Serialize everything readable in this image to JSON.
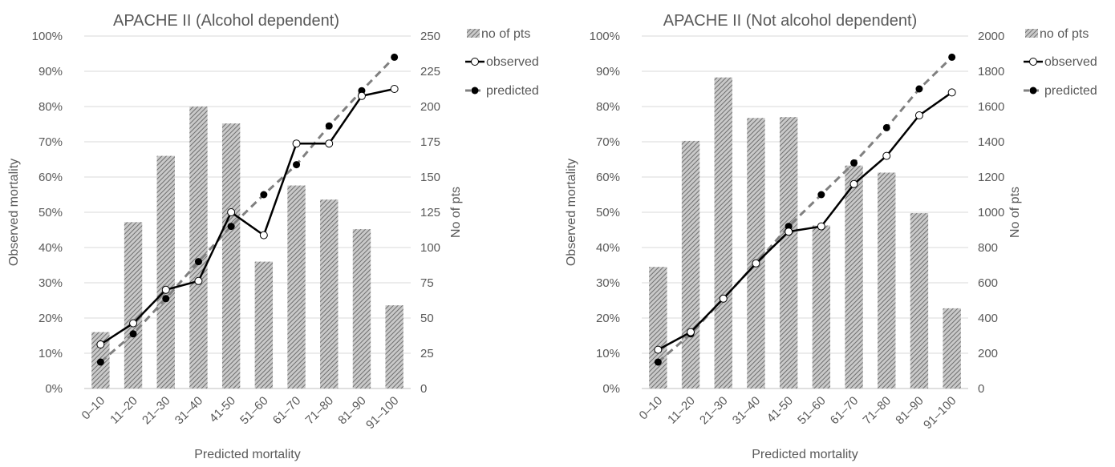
{
  "chart_data": [
    {
      "type": "bar",
      "title": "APACHE II (Alcohol dependent)",
      "xlabel": "Predicted mortality",
      "ylabel": "Observed mortality",
      "y2label": "No of pts",
      "categories": [
        "0–10",
        "11–20",
        "21–30",
        "31–40",
        "41-50",
        "51–60",
        "61–70",
        "71–80",
        "81–90",
        "91–100"
      ],
      "ylim": [
        0,
        100
      ],
      "y_ticks": [
        "0%",
        "10%",
        "20%",
        "30%",
        "40%",
        "50%",
        "60%",
        "70%",
        "80%",
        "90%",
        "100%"
      ],
      "y2lim": [
        0,
        250
      ],
      "y2_ticks": [
        "0",
        "25",
        "50",
        "75",
        "100",
        "125",
        "150",
        "175",
        "200",
        "225",
        "250"
      ],
      "legend_placement": "top-right",
      "series": [
        {
          "name": "no of pts",
          "kind": "bar",
          "axis": "right",
          "values": [
            40,
            118,
            165,
            200,
            188,
            90,
            144,
            134,
            113,
            59
          ]
        },
        {
          "name": "observed",
          "kind": "line-hollow-markers",
          "axis": "left",
          "values": [
            12.5,
            18.5,
            28,
            30.5,
            50,
            43.5,
            69.5,
            69.5,
            83,
            85
          ]
        },
        {
          "name": "predicted",
          "kind": "dashed-line-filled-markers",
          "axis": "left",
          "values": [
            7.5,
            15.5,
            25.5,
            36,
            46,
            55,
            63.5,
            74.5,
            84.5,
            94
          ]
        }
      ]
    },
    {
      "type": "bar",
      "title": "APACHE II (Not alcohol dependent)",
      "xlabel": "Predicted mortality",
      "ylabel": "Observed mortality",
      "y2label": "No of pts",
      "categories": [
        "0–10",
        "11–20",
        "21–30",
        "31–40",
        "41-50",
        "51–60",
        "61–70",
        "71–80",
        "81–90",
        "91–100"
      ],
      "ylim": [
        0,
        100
      ],
      "y_ticks": [
        "0%",
        "10%",
        "20%",
        "30%",
        "40%",
        "50%",
        "60%",
        "70%",
        "80%",
        "90%",
        "100%"
      ],
      "y2lim": [
        0,
        2000
      ],
      "y2_ticks": [
        "0",
        "200",
        "400",
        "600",
        "800",
        "1000",
        "1200",
        "1400",
        "1600",
        "1800",
        "2000"
      ],
      "legend_placement": "top-right",
      "series": [
        {
          "name": "no of pts",
          "kind": "bar",
          "axis": "right",
          "values": [
            690,
            1405,
            1765,
            1535,
            1540,
            925,
            1265,
            1225,
            995,
            455
          ]
        },
        {
          "name": "observed",
          "kind": "line-hollow-markers",
          "axis": "left",
          "values": [
            11,
            16,
            25.5,
            35.5,
            44.5,
            46,
            58,
            66,
            77.5,
            84
          ]
        },
        {
          "name": "predicted",
          "kind": "dashed-line-filled-markers",
          "axis": "left",
          "values": [
            7.5,
            15.5,
            25.5,
            35.5,
            46,
            55,
            64,
            74,
            85,
            94
          ]
        }
      ]
    }
  ],
  "colors": {
    "bar": "#8c8c8c",
    "observed": "#000000",
    "predicted": "#808080",
    "grid": "#d9d9d9",
    "text": "#595959"
  }
}
